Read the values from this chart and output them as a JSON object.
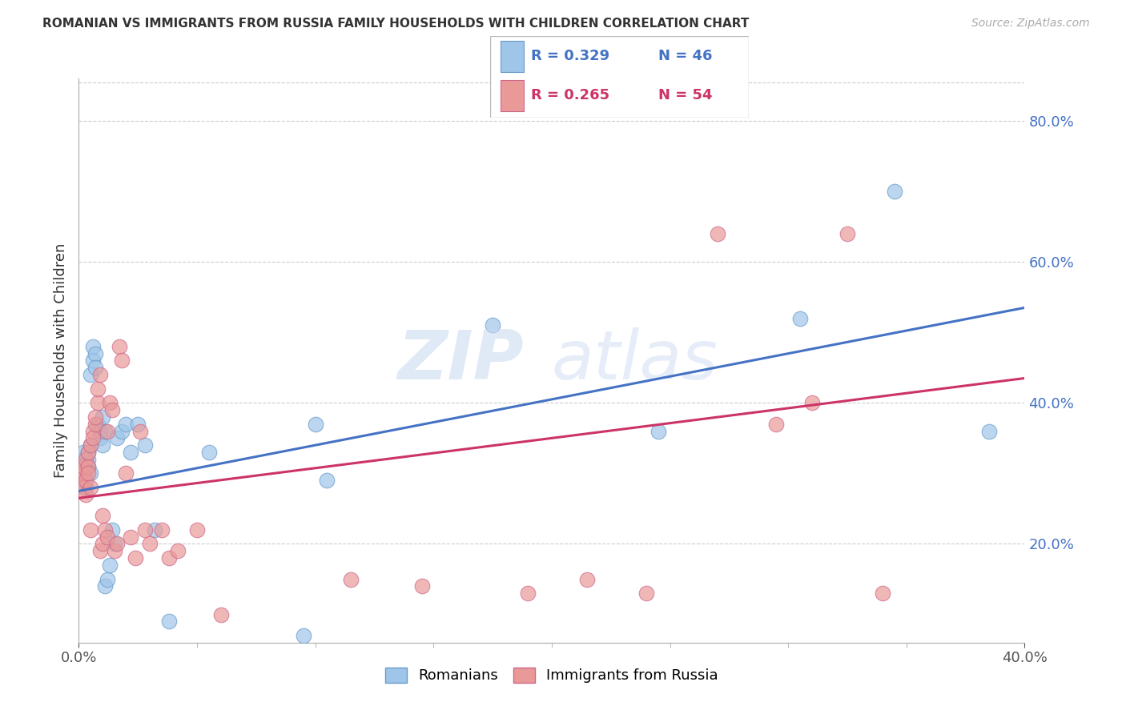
{
  "title": "ROMANIAN VS IMMIGRANTS FROM RUSSIA FAMILY HOUSEHOLDS WITH CHILDREN CORRELATION CHART",
  "source": "Source: ZipAtlas.com",
  "ylabel": "Family Households with Children",
  "xlim": [
    0.0,
    0.4
  ],
  "ylim": [
    0.06,
    0.86
  ],
  "right_yticks": [
    0.2,
    0.4,
    0.6,
    0.8
  ],
  "xticks_minor": [
    0.05,
    0.1,
    0.15,
    0.2,
    0.25,
    0.3,
    0.35,
    0.4
  ],
  "legend": {
    "R1": "0.329",
    "N1": "46",
    "R2": "0.265",
    "N2": "54",
    "label1": "Romanians",
    "label2": "Immigrants from Russia"
  },
  "blue_color": "#9fc5e8",
  "pink_color": "#ea9999",
  "blue_line_color": "#4472c4",
  "pink_line_color": "#cc3366",
  "blue_edge_color": "#6699cc",
  "pink_edge_color": "#cc6688",
  "watermark": "ZIPatlas",
  "blue_line_x0": 0.0,
  "blue_line_y0": 0.275,
  "blue_line_x1": 0.4,
  "blue_line_y1": 0.535,
  "pink_line_x0": 0.0,
  "pink_line_y0": 0.265,
  "pink_line_x1": 0.4,
  "pink_line_y1": 0.435,
  "blue_x": [
    0.001,
    0.001,
    0.002,
    0.002,
    0.002,
    0.003,
    0.003,
    0.003,
    0.004,
    0.004,
    0.004,
    0.005,
    0.005,
    0.005,
    0.006,
    0.006,
    0.007,
    0.007,
    0.008,
    0.009,
    0.009,
    0.01,
    0.01,
    0.011,
    0.011,
    0.012,
    0.013,
    0.014,
    0.015,
    0.016,
    0.018,
    0.02,
    0.022,
    0.025,
    0.028,
    0.032,
    0.038,
    0.055,
    0.095,
    0.1,
    0.105,
    0.175,
    0.245,
    0.305,
    0.345,
    0.385
  ],
  "blue_y": [
    0.31,
    0.3,
    0.32,
    0.29,
    0.33,
    0.28,
    0.31,
    0.3,
    0.32,
    0.31,
    0.33,
    0.3,
    0.34,
    0.44,
    0.46,
    0.48,
    0.47,
    0.45,
    0.37,
    0.36,
    0.35,
    0.34,
    0.38,
    0.36,
    0.14,
    0.15,
    0.17,
    0.22,
    0.2,
    0.35,
    0.36,
    0.37,
    0.33,
    0.37,
    0.34,
    0.22,
    0.09,
    0.33,
    0.07,
    0.37,
    0.29,
    0.51,
    0.36,
    0.52,
    0.7,
    0.36
  ],
  "pink_x": [
    0.001,
    0.001,
    0.002,
    0.002,
    0.002,
    0.003,
    0.003,
    0.003,
    0.004,
    0.004,
    0.004,
    0.005,
    0.005,
    0.005,
    0.006,
    0.006,
    0.007,
    0.007,
    0.008,
    0.008,
    0.009,
    0.009,
    0.01,
    0.01,
    0.011,
    0.012,
    0.012,
    0.013,
    0.014,
    0.015,
    0.016,
    0.017,
    0.018,
    0.02,
    0.022,
    0.024,
    0.026,
    0.028,
    0.03,
    0.035,
    0.038,
    0.042,
    0.05,
    0.06,
    0.115,
    0.145,
    0.19,
    0.215,
    0.24,
    0.27,
    0.295,
    0.31,
    0.325,
    0.34
  ],
  "pink_y": [
    0.29,
    0.3,
    0.3,
    0.28,
    0.31,
    0.27,
    0.29,
    0.32,
    0.31,
    0.3,
    0.33,
    0.28,
    0.22,
    0.34,
    0.36,
    0.35,
    0.37,
    0.38,
    0.4,
    0.42,
    0.44,
    0.19,
    0.2,
    0.24,
    0.22,
    0.21,
    0.36,
    0.4,
    0.39,
    0.19,
    0.2,
    0.48,
    0.46,
    0.3,
    0.21,
    0.18,
    0.36,
    0.22,
    0.2,
    0.22,
    0.18,
    0.19,
    0.22,
    0.1,
    0.15,
    0.14,
    0.13,
    0.15,
    0.13,
    0.64,
    0.37,
    0.4,
    0.64,
    0.13
  ]
}
